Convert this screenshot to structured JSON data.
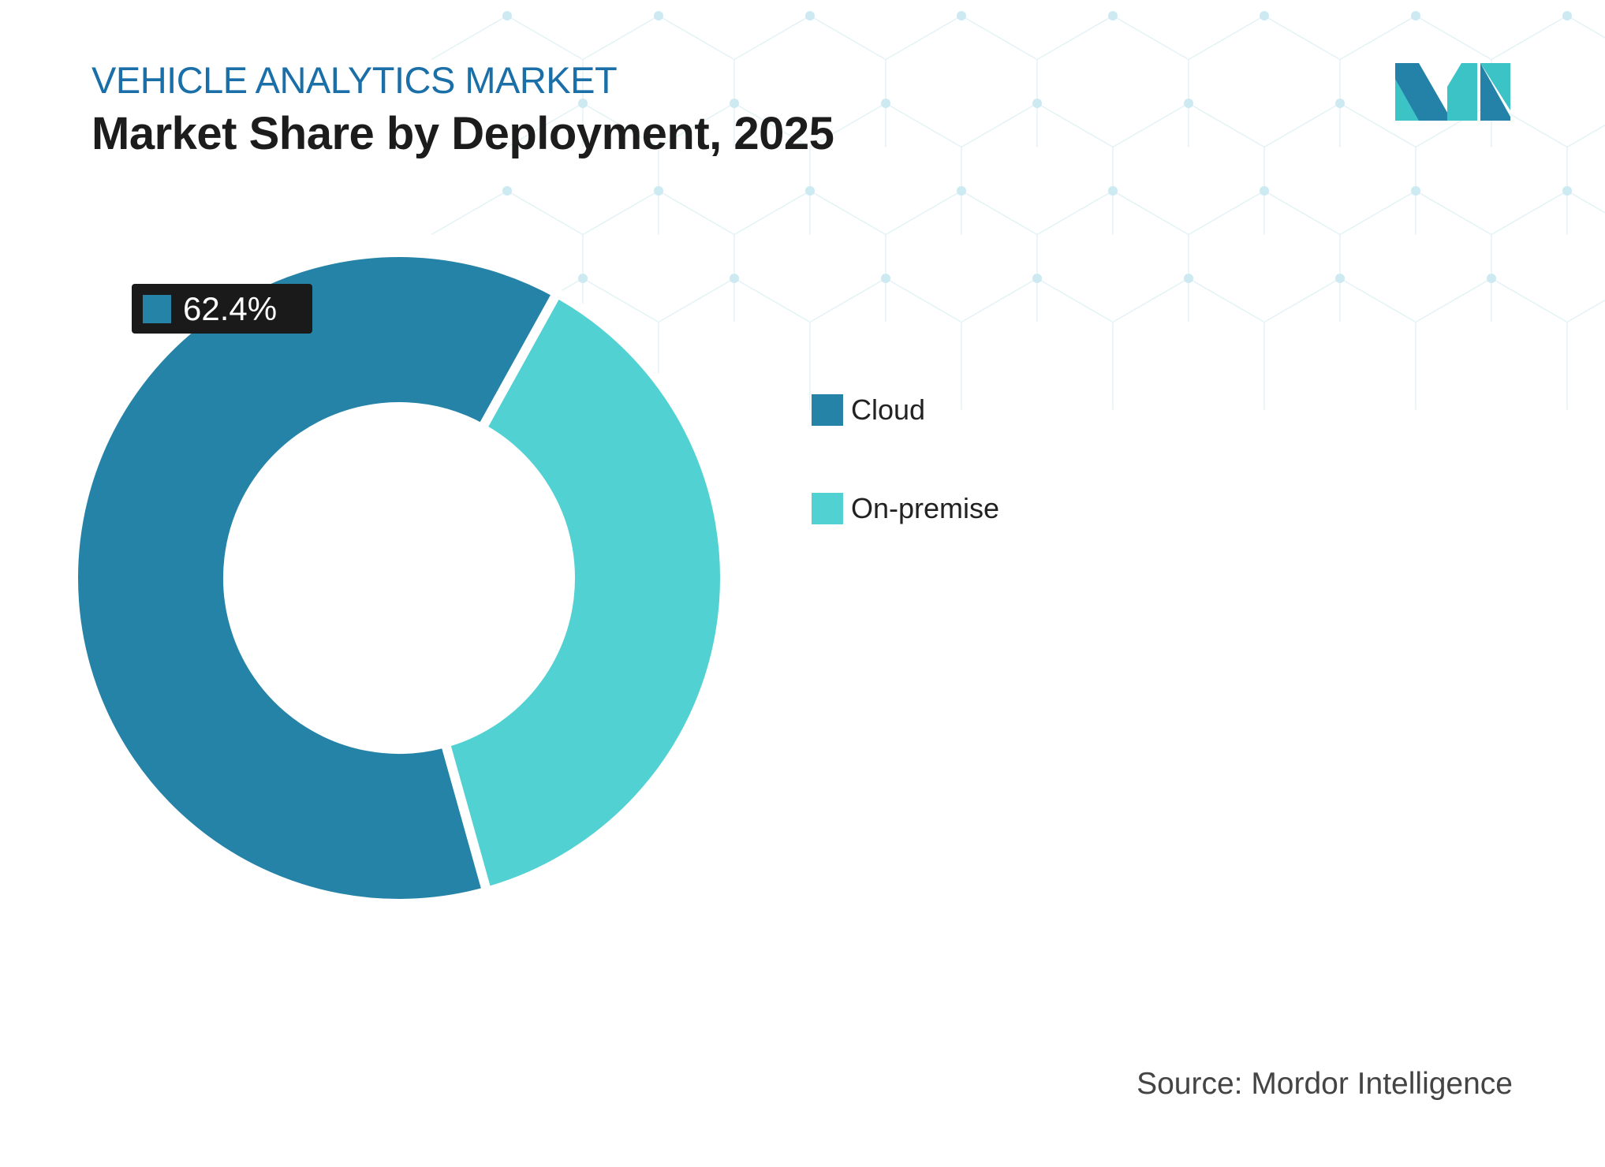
{
  "header": {
    "kicker": "VEHICLE ANALYTICS MARKET",
    "title": "Market Share by Deployment, 2025"
  },
  "source": "Source: Mordor Intelligence",
  "logo": {
    "name": "mordor-intelligence-logo",
    "colors": [
      "#2481a8",
      "#3cc3c6"
    ]
  },
  "chart_data": {
    "type": "pie",
    "donut": true,
    "categories": [
      "Cloud",
      "On-premise"
    ],
    "values": [
      62.4,
      37.6
    ],
    "colors": [
      "#2683a8",
      "#52d1d3"
    ],
    "data_labels": [
      "62.4%"
    ],
    "legend_position": "right"
  }
}
